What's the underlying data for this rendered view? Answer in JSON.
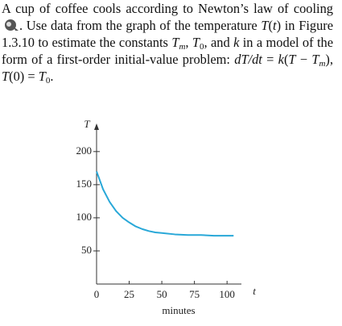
{
  "problem": {
    "runs": [
      "A cup of coffee cools according to Newton’s law of cooling",
      ". Use data from the graph of the temperature ",
      "T",
      "(",
      "t",
      ") in Figure 1.3.10 to estimate the constants ",
      "T",
      "m",
      ", ",
      "T",
      "0",
      ", and ",
      "k",
      " in a model of the form of a first-order initial-value problem: ",
      "dT/dt",
      " = ",
      "k",
      "(",
      "T",
      " − ",
      "T",
      "m",
      "), ",
      "T",
      "(0) = ",
      "T",
      "0",
      "."
    ]
  },
  "chart_data": {
    "type": "line",
    "y_label": "T",
    "x_label": "t",
    "x_title": "minutes",
    "x": [
      0,
      5,
      10,
      15,
      20,
      25,
      30,
      35,
      40,
      45,
      50,
      60,
      70,
      80,
      90,
      105
    ],
    "values": [
      170,
      143,
      124,
      110,
      100,
      93,
      87,
      83,
      80,
      78,
      77,
      75,
      74,
      74,
      73,
      73
    ],
    "color": "#29a8d8",
    "xlim": [
      0,
      111
    ],
    "xticks": [
      0,
      25,
      50,
      75,
      100
    ],
    "ylim": [
      0,
      240
    ],
    "yticks": [
      50,
      100,
      150,
      200
    ]
  }
}
